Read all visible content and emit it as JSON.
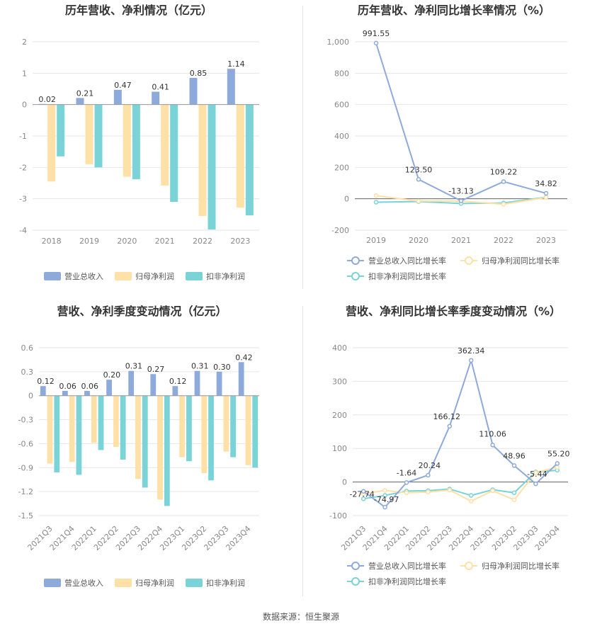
{
  "source_label": "数据来源：恒生聚源",
  "colors": {
    "revenue": "#8eaadb",
    "net_profit": "#ffe0a6",
    "deducted": "#7ad3d6",
    "grid": "#e6e6e6",
    "axis": "#999999"
  },
  "legend_labels": {
    "bar": [
      "营业总收入",
      "归母净利润",
      "扣非净利润"
    ],
    "line": [
      "营业总收入同比增长率",
      "归母净利润同比增长率",
      "扣非净利润同比增长率"
    ]
  },
  "chart_data": [
    {
      "type": "bar",
      "title": "历年营收、净利情况（亿元）",
      "categories": [
        "2018",
        "2019",
        "2020",
        "2021",
        "2022",
        "2023"
      ],
      "ylim": [
        -4,
        2
      ],
      "yticks": [
        2,
        1,
        0,
        -1,
        -2,
        -3,
        -4
      ],
      "series": [
        {
          "name": "营业总收入",
          "values": [
            0.02,
            0.21,
            0.47,
            0.41,
            0.85,
            1.14
          ]
        },
        {
          "name": "归母净利润",
          "values": [
            -2.45,
            -1.9,
            -2.3,
            -2.58,
            -3.55,
            -3.28
          ]
        },
        {
          "name": "扣非净利润",
          "values": [
            -1.65,
            -2.0,
            -2.38,
            -3.1,
            -3.98,
            -3.53
          ]
        }
      ],
      "data_labels": [
        "0.02",
        "0.21",
        "0.47",
        "0.41",
        "0.85",
        "1.14"
      ],
      "grid": true,
      "legend": "bottom"
    },
    {
      "type": "line",
      "title": "历年营收、净利同比增长率情况（%）",
      "categories": [
        "2019",
        "2020",
        "2021",
        "2022",
        "2023"
      ],
      "ylim": [
        -200,
        1000
      ],
      "yticks": [
        1000,
        800,
        600,
        400,
        200,
        0,
        -200
      ],
      "ytick_labels": [
        "1,000",
        "800",
        "600",
        "400",
        "200",
        "0",
        "-200"
      ],
      "series": [
        {
          "name": "营业总收入同比增长率",
          "values": [
            991.55,
            123.5,
            -13.13,
            109.22,
            34.82
          ]
        },
        {
          "name": "归母净利润同比增长率",
          "values": [
            20,
            -15,
            -15,
            -35,
            8
          ]
        },
        {
          "name": "扣非净利润同比增长率",
          "values": [
            -22,
            -18,
            -30,
            -27,
            10
          ]
        }
      ],
      "data_labels": [
        "991.55",
        "123.50",
        "-13.13",
        "109.22",
        "34.82"
      ],
      "grid": true,
      "legend": "bottom"
    },
    {
      "type": "bar",
      "title": "营收、净利季度变动情况（亿元）",
      "categories": [
        "2021Q3",
        "2021Q4",
        "2022Q1",
        "2022Q2",
        "2022Q3",
        "2022Q4",
        "2023Q1",
        "2023Q2",
        "2023Q3",
        "2023Q4"
      ],
      "ylim": [
        -1.5,
        0.6
      ],
      "yticks": [
        0.6,
        0.3,
        0,
        -0.3,
        -0.6,
        -0.9,
        -1.2,
        -1.5
      ],
      "series": [
        {
          "name": "营业总收入",
          "values": [
            0.12,
            0.06,
            0.06,
            0.2,
            0.31,
            0.27,
            0.12,
            0.31,
            0.3,
            0.42
          ]
        },
        {
          "name": "归母净利润",
          "values": [
            -0.85,
            -0.83,
            -0.59,
            -0.64,
            -1.04,
            -1.3,
            -0.77,
            -0.97,
            -0.7,
            -0.87
          ]
        },
        {
          "name": "扣非净利润",
          "values": [
            -0.96,
            -0.99,
            -0.68,
            -0.8,
            -1.15,
            -1.38,
            -0.82,
            -1.06,
            -0.77,
            -0.9
          ]
        }
      ],
      "data_labels": [
        "0.12",
        "0.06",
        "0.06",
        "0.20",
        "0.31",
        "0.27",
        "0.12",
        "0.31",
        "0.30",
        "0.42"
      ],
      "grid": true,
      "legend": "bottom"
    },
    {
      "type": "line",
      "title": "营收、净利同比增长率季度变动情况（%）",
      "categories": [
        "2021Q3",
        "2021Q4",
        "2022Q1",
        "2022Q2",
        "2022Q3",
        "2022Q4",
        "2023Q1",
        "2023Q2",
        "2023Q3",
        "2023Q4"
      ],
      "ylim": [
        -100,
        400
      ],
      "yticks": [
        400,
        300,
        200,
        100,
        0,
        -100
      ],
      "series": [
        {
          "name": "营业总收入同比增长率",
          "values": [
            -27.74,
            -74.97,
            -1.64,
            20.24,
            166.12,
            362.34,
            110.06,
            48.96,
            -5.44,
            55.2
          ]
        },
        {
          "name": "归母净利润同比增长率",
          "values": [
            -35,
            -25,
            -32,
            -30,
            -24,
            -57,
            -26,
            -53,
            28,
            44
          ]
        },
        {
          "name": "扣非净利润同比增长率",
          "values": [
            -50,
            -40,
            -27,
            -26,
            -21,
            -40,
            -23,
            -32,
            30,
            35
          ]
        }
      ],
      "data_labels": [
        "-27.74",
        "-74.97",
        "-1.64",
        "20.24",
        "166.12",
        "362.34",
        "110.06",
        "48.96",
        "-5.44",
        "55.20"
      ],
      "grid": true,
      "legend": "bottom"
    }
  ]
}
